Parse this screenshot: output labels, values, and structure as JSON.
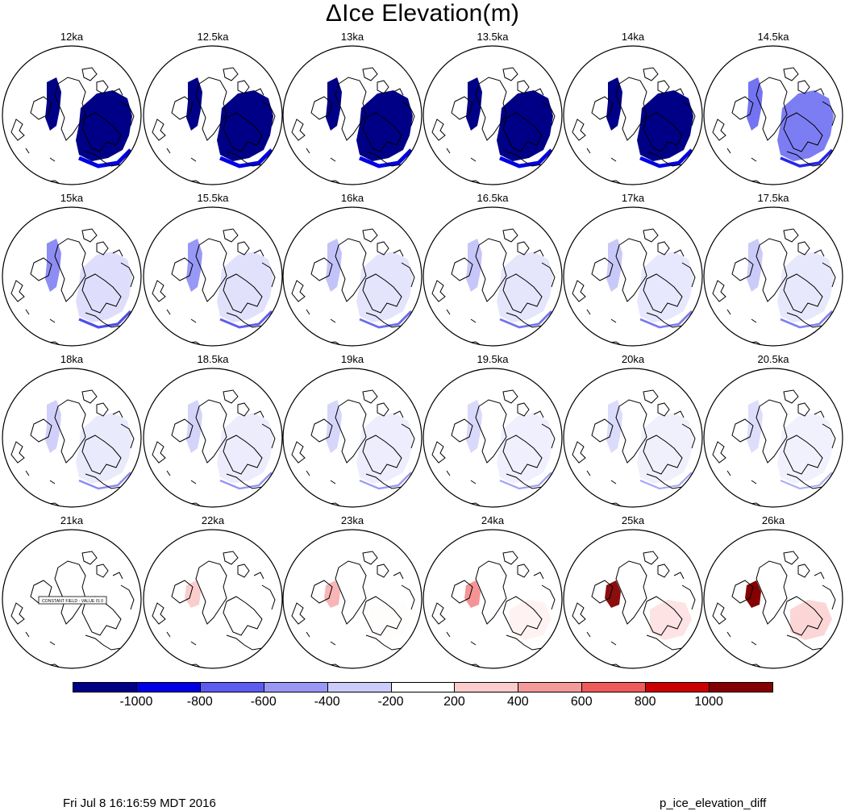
{
  "title": "ΔIce Elevation(m)",
  "panels": [
    {
      "label": "12ka",
      "level": 1.0,
      "sign": "neg",
      "stamp": ""
    },
    {
      "label": "12.5ka",
      "level": 0.98,
      "sign": "neg",
      "stamp": ""
    },
    {
      "label": "13ka",
      "level": 0.95,
      "sign": "neg",
      "stamp": ""
    },
    {
      "label": "13.5ka",
      "level": 0.92,
      "sign": "neg",
      "stamp": ""
    },
    {
      "label": "14ka",
      "level": 0.85,
      "sign": "neg",
      "stamp": ""
    },
    {
      "label": "14.5ka",
      "level": 0.55,
      "sign": "neg",
      "stamp": ""
    },
    {
      "label": "15ka",
      "level": 0.4,
      "sign": "neg",
      "stamp": ""
    },
    {
      "label": "15.5ka",
      "level": 0.33,
      "sign": "neg",
      "stamp": ""
    },
    {
      "label": "16ka",
      "level": 0.28,
      "sign": "neg",
      "stamp": ""
    },
    {
      "label": "16.5ka",
      "level": 0.25,
      "sign": "neg",
      "stamp": ""
    },
    {
      "label": "17ka",
      "level": 0.22,
      "sign": "neg",
      "stamp": ""
    },
    {
      "label": "17.5ka",
      "level": 0.2,
      "sign": "neg",
      "stamp": ""
    },
    {
      "label": "18ka",
      "level": 0.16,
      "sign": "neg",
      "stamp": ""
    },
    {
      "label": "18.5ka",
      "level": 0.12,
      "sign": "neg",
      "stamp": ""
    },
    {
      "label": "19ka",
      "level": 0.1,
      "sign": "neg",
      "stamp": ""
    },
    {
      "label": "19.5ka",
      "level": 0.07,
      "sign": "neg",
      "stamp": ""
    },
    {
      "label": "20ka",
      "level": 0.05,
      "sign": "neg",
      "stamp": ""
    },
    {
      "label": "20.5ka",
      "level": 0.02,
      "sign": "neg",
      "stamp": ""
    },
    {
      "label": "21ka",
      "level": 0.0,
      "sign": "none",
      "stamp": "CONSTANT FIELD - VALUE IS 0"
    },
    {
      "label": "22ka",
      "level": 0.1,
      "sign": "pos",
      "stamp": ""
    },
    {
      "label": "23ka",
      "level": 0.25,
      "sign": "pos",
      "stamp": ""
    },
    {
      "label": "24ka",
      "level": 0.45,
      "sign": "pos",
      "stamp": ""
    },
    {
      "label": "25ka",
      "level": 0.75,
      "sign": "pos",
      "stamp": ""
    },
    {
      "label": "26ka",
      "level": 1.0,
      "sign": "pos",
      "stamp": ""
    }
  ],
  "colorbar": {
    "colors": [
      "#000087",
      "#0000e4",
      "#5c5cf0",
      "#9898f4",
      "#ccccfa",
      "#ffffff",
      "#fbcccc",
      "#f59a9a",
      "#ef5a5a",
      "#cc0000",
      "#850000"
    ],
    "tick_labels": [
      "-1000",
      "-800",
      "-600",
      "-400",
      "-200",
      "200",
      "400",
      "600",
      "800",
      "1000"
    ]
  },
  "footer": {
    "timestamp": "Fri Jul  8 16:16:59 MDT 2016",
    "plot_name": "p_ice_elevation_diff"
  }
}
